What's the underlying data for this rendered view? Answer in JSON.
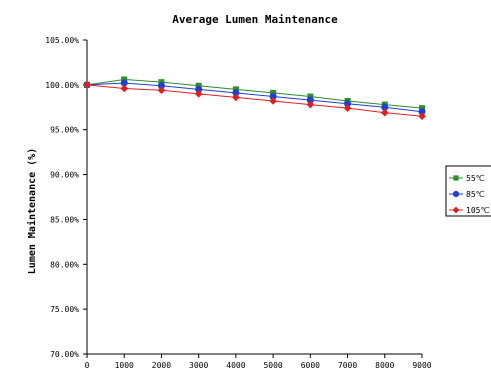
{
  "chart_data": {
    "type": "line",
    "title": "Average Lumen Maintenance",
    "xlabel": "",
    "ylabel": "Lumen Maintenance  (%)",
    "x": [
      0,
      1000,
      2000,
      3000,
      4000,
      5000,
      6000,
      7000,
      8000,
      9000
    ],
    "x_tick_labels": [
      "0",
      "1000",
      "2000",
      "3000",
      "4000",
      "5000",
      "6000",
      "7000",
      "8000",
      "9000"
    ],
    "y_tick_labels": [
      "70.00%",
      "75.00%",
      "80.00%",
      "85.00%",
      "90.00%",
      "95.00%",
      "100.00%",
      "105.00%"
    ],
    "y_ticks": [
      70,
      75,
      80,
      85,
      90,
      95,
      100,
      105
    ],
    "xlim": [
      0,
      9000
    ],
    "ylim": [
      70,
      105
    ],
    "grid": false,
    "legend_position": "right",
    "series": [
      {
        "name": "55℃",
        "color": "#2e8b2e",
        "marker": "square",
        "values": [
          100.0,
          100.6,
          100.3,
          99.9,
          99.5,
          99.1,
          98.7,
          98.2,
          97.8,
          97.4
        ]
      },
      {
        "name": "85℃",
        "color": "#1f3fd0",
        "marker": "circle",
        "values": [
          100.0,
          100.2,
          99.9,
          99.5,
          99.1,
          98.7,
          98.3,
          97.9,
          97.5,
          97.0
        ]
      },
      {
        "name": "105℃",
        "color": "#e02020",
        "marker": "diamond",
        "values": [
          100.0,
          99.6,
          99.4,
          99.0,
          98.6,
          98.2,
          97.8,
          97.4,
          96.9,
          96.5
        ]
      }
    ]
  }
}
